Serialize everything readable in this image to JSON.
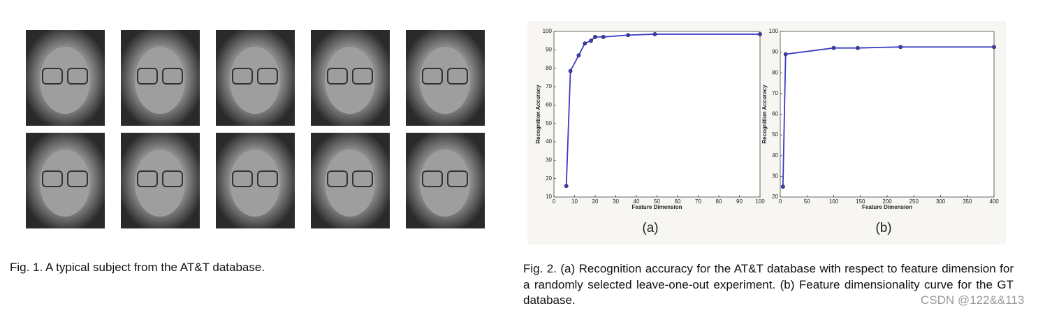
{
  "chart_data": [
    {
      "type": "line",
      "caption": "(a)",
      "x_label": "Feature Dimension",
      "y_label": "Recognition Accuracy",
      "x": [
        6,
        8,
        12,
        15,
        18,
        20,
        24,
        36,
        49,
        100
      ],
      "series": [
        {
          "color": "#3b3bc4",
          "values": [
            16,
            78.5,
            87,
            93.5,
            95,
            97,
            97,
            98,
            98.5,
            98.5
          ]
        }
      ],
      "xlim": [
        0,
        100
      ],
      "xticks": [
        0,
        10,
        20,
        30,
        40,
        50,
        60,
        70,
        80,
        90,
        100
      ],
      "ylim": [
        10,
        100
      ],
      "yticks": [
        10,
        20,
        30,
        40,
        50,
        60,
        70,
        80,
        90,
        100
      ]
    },
    {
      "type": "line",
      "caption": "(b)",
      "x_label": "Feature Dimension",
      "y_label": "Recognition Accuracy",
      "x": [
        5,
        10,
        100,
        145,
        225,
        400
      ],
      "series": [
        {
          "color": "#3b3bc4",
          "values": [
            25,
            89,
            92,
            92,
            92.5,
            92.5
          ]
        }
      ],
      "xlim": [
        0,
        400
      ],
      "xticks": [
        0,
        50,
        100,
        150,
        200,
        250,
        300,
        350,
        400
      ],
      "ylim": [
        20,
        100
      ],
      "yticks": [
        20,
        30,
        40,
        50,
        60,
        70,
        80,
        90,
        100
      ]
    }
  ],
  "fig1": {
    "caption": "Fig. 1. A typical subject from the AT&T database."
  },
  "fig2": {
    "caption": "Fig. 2. (a) Recognition accuracy for the AT&T database with respect to feature dimension for a randomly selected leave-one-out experiment. (b) Feature dimensionality curve for the GT database."
  },
  "watermark": "CSDN @122&&113"
}
